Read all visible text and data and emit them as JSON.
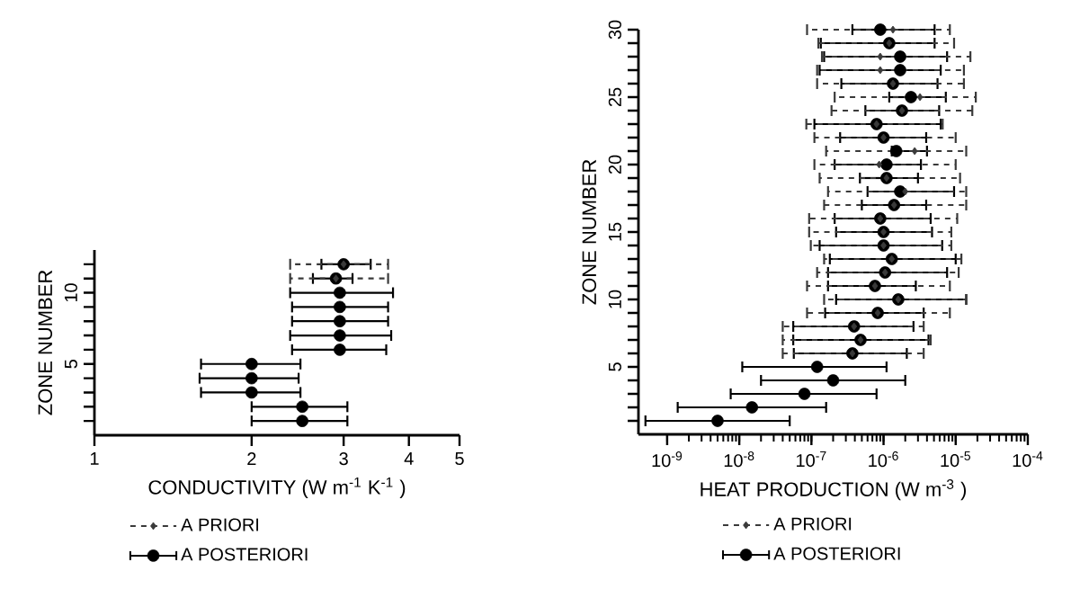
{
  "chart_data": [
    {
      "type": "scatter",
      "xlabel": "CONDUCTIVITY (W m$^{-1}$ K$^{-1}$ )",
      "ylabel": "ZONE NUMBER",
      "log": "x",
      "legend": "bottom",
      "xlim": [
        1,
        5
      ],
      "xticks": [
        1,
        2,
        3,
        4,
        5
      ],
      "ylim": [
        0,
        13
      ],
      "yticks": [
        {
          "value": 1,
          "label": null
        },
        {
          "value": 2,
          "label": null
        },
        {
          "value": 3,
          "label": null
        },
        {
          "value": 4,
          "label": null
        },
        5,
        {
          "value": 6,
          "label": null
        },
        {
          "value": 7,
          "label": null
        },
        {
          "value": 8,
          "label": null
        },
        {
          "value": 9,
          "label": null
        },
        10,
        {
          "value": 11,
          "label": null
        },
        {
          "value": 12,
          "label": null
        }
      ],
      "series": [
        {
          "name": "A PRIORI",
          "color": "#3a3a3a",
          "marker": "diamond",
          "line_style": "dashed",
          "x": [
            2.9,
            3.0
          ],
          "values": [
            11,
            12
          ],
          "xerrors": [
            [
              2.37,
              3.65
            ],
            [
              2.37,
              3.65
            ]
          ]
        },
        {
          "name": "A POSTERIORI",
          "color": "#000000",
          "marker": "circle",
          "line_style": "solid",
          "x": [
            2.5,
            2.5,
            2.0,
            2.0,
            2.0,
            2.95,
            2.95,
            2.95,
            2.95,
            2.95,
            2.9,
            3.0
          ],
          "values": [
            1,
            2,
            3,
            4,
            5,
            6,
            7,
            8,
            9,
            10,
            11,
            12
          ],
          "xerrors": [
            [
              2.0,
              3.05
            ],
            [
              2.0,
              3.05
            ],
            [
              1.6,
              2.48
            ],
            [
              1.59,
              2.46
            ],
            [
              1.6,
              2.48
            ],
            [
              2.39,
              3.62
            ],
            [
              2.37,
              3.7
            ],
            [
              2.39,
              3.65
            ],
            [
              2.39,
              3.65
            ],
            [
              2.37,
              3.73
            ],
            [
              2.62,
              3.12
            ],
            [
              2.72,
              3.38
            ]
          ]
        }
      ]
    },
    {
      "type": "scatter",
      "xlabel": "HEAT PRODUCTION (W m$^{-3}$ )",
      "ylabel": "ZONE NUMBER",
      "log": "x",
      "legend": "bottom",
      "xlim": [
        4e-10,
        0.0001
      ],
      "xticks": [
        {
          "value": 1e-09,
          "label": "10$^{-9}$"
        },
        {
          "value": 1e-08,
          "label": "10$^{-8}$"
        },
        {
          "value": 1e-07,
          "label": "10$^{-7}$"
        },
        {
          "value": 1e-06,
          "label": "10$^{-6}$"
        },
        {
          "value": 1e-05,
          "label": "10$^{-5}$"
        },
        {
          "value": 0.0001,
          "label": "10$^{-4}$"
        }
      ],
      "ylim": [
        0,
        30
      ],
      "yticks": [
        {
          "value": 1,
          "label": null
        },
        {
          "value": 2,
          "label": null
        },
        {
          "value": 3,
          "label": null
        },
        {
          "value": 4,
          "label": null
        },
        5,
        {
          "value": 6,
          "label": null
        },
        {
          "value": 7,
          "label": null
        },
        {
          "value": 8,
          "label": null
        },
        {
          "value": 9,
          "label": null
        },
        10,
        {
          "value": 11,
          "label": null
        },
        {
          "value": 12,
          "label": null
        },
        {
          "value": 13,
          "label": null
        },
        {
          "value": 14,
          "label": null
        },
        15,
        {
          "value": 16,
          "label": null
        },
        {
          "value": 17,
          "label": null
        },
        {
          "value": 18,
          "label": null
        },
        {
          "value": 19,
          "label": null
        },
        20,
        {
          "value": 21,
          "label": null
        },
        {
          "value": 22,
          "label": null
        },
        {
          "value": 23,
          "label": null
        },
        {
          "value": 24,
          "label": null
        },
        25,
        {
          "value": 26,
          "label": null
        },
        {
          "value": 27,
          "label": null
        },
        {
          "value": 28,
          "label": null
        },
        {
          "value": 29,
          "label": null
        },
        30
      ],
      "series": [
        {
          "name": "A PRIORI",
          "color": "#3a3a3a",
          "marker": "diamond",
          "line_style": "dashed",
          "x": [
            3.7e-07,
            4.8e-07,
            3.9e-07,
            8.3e-07,
            1.6e-06,
            7.6e-07,
            1.05e-06,
            1.3e-06,
            1e-06,
            1e-06,
            9e-07,
            1.4e-06,
            2e-06,
            1.1e-06,
            8.7e-07,
            2.7e-06,
            1e-06,
            8e-07,
            1.8e-06,
            3.2e-06,
            1.35e-06,
            9e-07,
            9e-07,
            1.2e-06,
            1.35e-06
          ],
          "values": [
            6,
            7,
            8,
            9,
            10,
            11,
            12,
            13,
            14,
            15,
            16,
            17,
            18,
            19,
            20,
            21,
            22,
            23,
            24,
            25,
            26,
            27,
            28,
            29,
            30
          ],
          "xerrors": [
            [
              4e-08,
              3.6e-06
            ],
            [
              4e-08,
              4.5e-06
            ],
            [
              4e-08,
              3.6e-06
            ],
            [
              8.7e-08,
              8.3e-06
            ],
            [
              1.5e-07,
              1.4e-05
            ],
            [
              8.7e-08,
              8.3e-06
            ],
            [
              1.2e-07,
              1.1e-05
            ],
            [
              1.5e-07,
              1.2e-05
            ],
            [
              9.8e-08,
              8.7e-06
            ],
            [
              9.3e-08,
              8.7e-06
            ],
            [
              9.3e-08,
              1.05e-05
            ],
            [
              1.5e-07,
              1.4e-05
            ],
            [
              1.7e-07,
              1.4e-05
            ],
            [
              1.3e-07,
              1.15e-05
            ],
            [
              1.1e-07,
              1e-05
            ],
            [
              1.6e-07,
              1.4e-05
            ],
            [
              1.1e-07,
              1e-05
            ],
            [
              8.5e-08,
              6.6e-06
            ],
            [
              1.9e-07,
              1.7e-05
            ],
            [
              2.1e-07,
              1.9e-05
            ],
            [
              1.2e-07,
              1.3e-05
            ],
            [
              1.2e-07,
              1.3e-05
            ],
            [
              1.4e-07,
              1.6e-05
            ],
            [
              1.25e-07,
              9.5e-06
            ],
            [
              8.7e-08,
              8.3e-06
            ]
          ]
        },
        {
          "name": "A POSTERIORI",
          "color": "#000000",
          "marker": "circle",
          "line_style": "solid",
          "x": [
            5e-09,
            1.5e-08,
            8e-08,
            2e-07,
            1.2e-07,
            3.7e-07,
            4.8e-07,
            3.9e-07,
            8.3e-07,
            1.6e-06,
            7.6e-07,
            1.05e-06,
            1.3e-06,
            1e-06,
            1e-06,
            9e-07,
            1.4e-06,
            1.7e-06,
            1.1e-06,
            1.1e-06,
            1.5e-06,
            1e-06,
            8e-07,
            1.8e-06,
            2.4e-06,
            1.35e-06,
            1.7e-06,
            1.7e-06,
            1.2e-06,
            9e-07
          ],
          "values": [
            1,
            2,
            3,
            4,
            5,
            6,
            7,
            8,
            9,
            10,
            11,
            12,
            13,
            14,
            15,
            16,
            17,
            18,
            19,
            20,
            21,
            22,
            23,
            24,
            25,
            26,
            27,
            28,
            29,
            30
          ],
          "xerrors": [
            [
              5e-10,
              5e-08
            ],
            [
              1.4e-09,
              1.6e-07
            ],
            [
              7.6e-09,
              8e-07
            ],
            [
              2e-08,
              2e-06
            ],
            [
              1.1e-08,
              1.1e-06
            ],
            [
              5.7e-08,
              2.1e-06
            ],
            [
              5.6e-08,
              4.2e-06
            ],
            [
              5.6e-08,
              2.6e-06
            ],
            [
              1.55e-07,
              3.6e-06
            ],
            [
              2.2e-07,
              1.4e-05
            ],
            [
              1.7e-07,
              2.8e-06
            ],
            [
              1.7e-07,
              7.6e-06
            ],
            [
              1.8e-07,
              1e-05
            ],
            [
              1.3e-07,
              6.5e-06
            ],
            [
              2.2e-07,
              4.7e-06
            ],
            [
              2.1e-07,
              4.5e-06
            ],
            [
              5e-07,
              3.9e-06
            ],
            [
              6e-07,
              9.5e-06
            ],
            [
              4.7e-07,
              3e-06
            ],
            [
              2.1e-07,
              3.3e-06
            ],
            [
              1.3e-06,
              4e-06
            ],
            [
              2.5e-07,
              3.9e-06
            ],
            [
              1.1e-07,
              6.2e-06
            ],
            [
              5.6e-07,
              5.9e-06
            ],
            [
              1.2e-06,
              7.3e-06
            ],
            [
              2.6e-07,
              5.6e-06
            ],
            [
              1.3e-07,
              6.2e-06
            ],
            [
              1.5e-07,
              7.6e-06
            ],
            [
              1.35e-07,
              5.1e-06
            ],
            [
              3.7e-07,
              5.1e-06
            ]
          ]
        }
      ]
    }
  ]
}
